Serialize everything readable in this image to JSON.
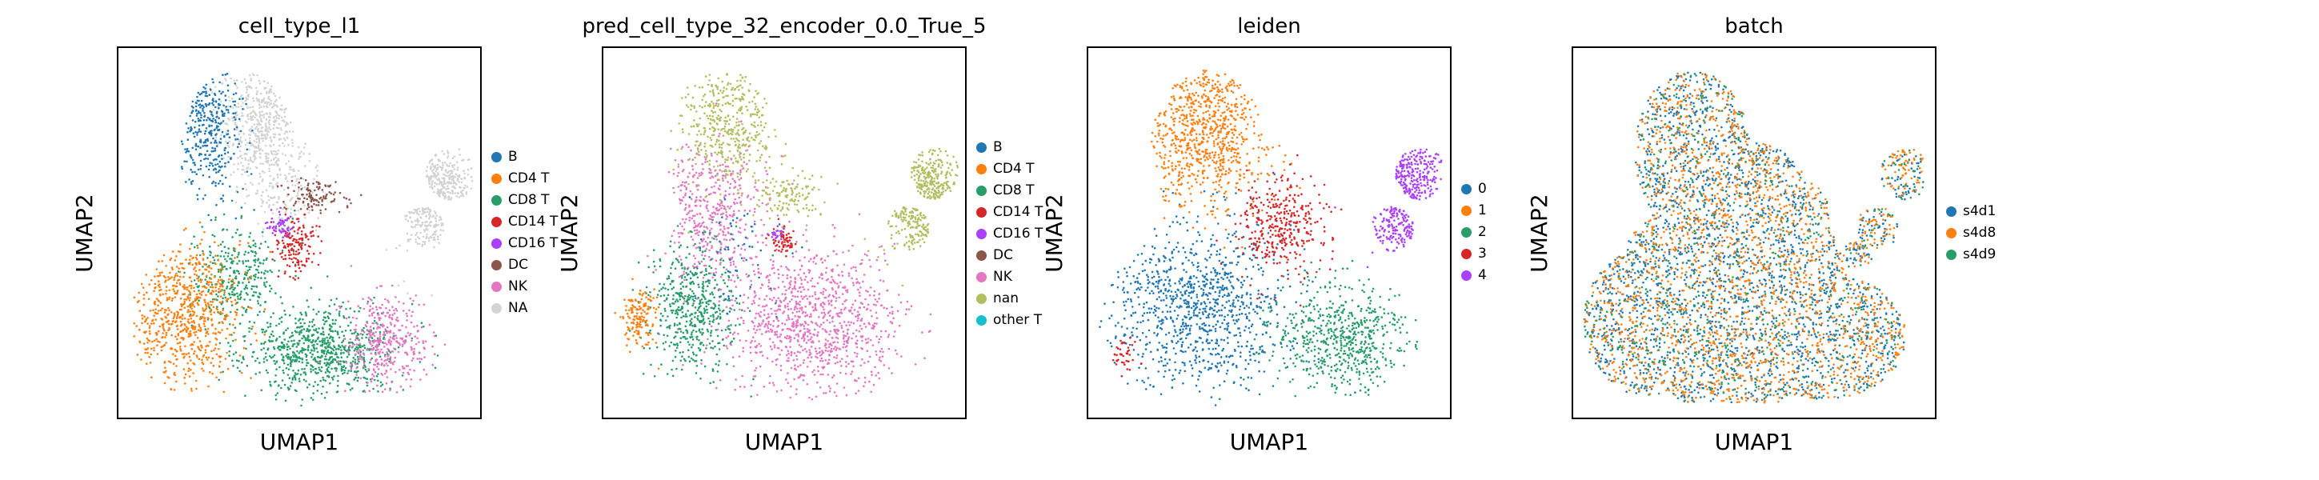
{
  "chart_data": [
    {
      "type": "scatter",
      "title": "cell_type_l1",
      "xlabel": "UMAP1",
      "ylabel": "UMAP2",
      "grid": false,
      "legend_placement": "right",
      "series": [
        {
          "name": "B",
          "color": "#1f77b4"
        },
        {
          "name": "CD4 T",
          "color": "#ff7f0e"
        },
        {
          "name": "CD8 T",
          "color": "#279e68"
        },
        {
          "name": "CD14 T",
          "color": "#d62728"
        },
        {
          "name": "CD16 T",
          "color": "#aa40fc"
        },
        {
          "name": "DC",
          "color": "#8c564b"
        },
        {
          "name": "NK",
          "color": "#e377c2"
        },
        {
          "name": "NA",
          "color": "#d3d3d3"
        }
      ]
    },
    {
      "type": "scatter",
      "title": "pred_cell_type_32_encoder_0.0_True_5",
      "xlabel": "UMAP1",
      "ylabel": "UMAP2",
      "grid": false,
      "legend_placement": "right",
      "series": [
        {
          "name": "B",
          "color": "#1f77b4"
        },
        {
          "name": "CD4 T",
          "color": "#ff7f0e"
        },
        {
          "name": "CD8 T",
          "color": "#279e68"
        },
        {
          "name": "CD14 T",
          "color": "#d62728"
        },
        {
          "name": "CD16 T",
          "color": "#aa40fc"
        },
        {
          "name": "DC",
          "color": "#8c564b"
        },
        {
          "name": "NK",
          "color": "#e377c2"
        },
        {
          "name": "nan",
          "color": "#b5bd61"
        },
        {
          "name": "other T",
          "color": "#17becf"
        }
      ]
    },
    {
      "type": "scatter",
      "title": "leiden",
      "xlabel": "UMAP1",
      "ylabel": "UMAP2",
      "grid": false,
      "legend_placement": "right",
      "series": [
        {
          "name": "0",
          "color": "#1f77b4"
        },
        {
          "name": "1",
          "color": "#ff7f0e"
        },
        {
          "name": "2",
          "color": "#279e68"
        },
        {
          "name": "3",
          "color": "#d62728"
        },
        {
          "name": "4",
          "color": "#aa40fc"
        }
      ]
    },
    {
      "type": "scatter",
      "title": "batch",
      "xlabel": "UMAP1",
      "ylabel": "UMAP2",
      "grid": false,
      "legend_placement": "right",
      "series": [
        {
          "name": "s4d1",
          "color": "#1f77b4"
        },
        {
          "name": "s4d8",
          "color": "#ff7f0e"
        },
        {
          "name": "s4d9",
          "color": "#279e68"
        }
      ]
    }
  ]
}
